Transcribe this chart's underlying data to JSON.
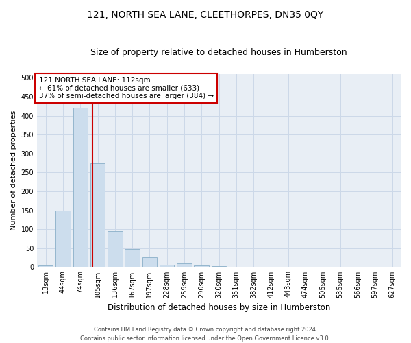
{
  "title": "121, NORTH SEA LANE, CLEETHORPES, DN35 0QY",
  "subtitle": "Size of property relative to detached houses in Humberston",
  "xlabel": "Distribution of detached houses by size in Humberston",
  "ylabel": "Number of detached properties",
  "bar_labels": [
    "13sqm",
    "44sqm",
    "74sqm",
    "105sqm",
    "136sqm",
    "167sqm",
    "197sqm",
    "228sqm",
    "259sqm",
    "290sqm",
    "320sqm",
    "351sqm",
    "382sqm",
    "412sqm",
    "443sqm",
    "474sqm",
    "505sqm",
    "535sqm",
    "566sqm",
    "597sqm",
    "627sqm"
  ],
  "bar_values": [
    5,
    150,
    420,
    275,
    95,
    48,
    27,
    7,
    10,
    5,
    3,
    0,
    0,
    0,
    0,
    0,
    0,
    0,
    0,
    0,
    0
  ],
  "bar_color": "#ccdded",
  "bar_edge_color": "#8aafc8",
  "vline_color": "#cc0000",
  "annotation_line1": "121 NORTH SEA LANE: 112sqm",
  "annotation_line2": "← 61% of detached houses are smaller (633)",
  "annotation_line3": "37% of semi-detached houses are larger (384) →",
  "annotation_box_edgecolor": "#cc0000",
  "annotation_box_facecolor": "#ffffff",
  "ylim": [
    0,
    510
  ],
  "yticks": [
    0,
    50,
    100,
    150,
    200,
    250,
    300,
    350,
    400,
    450,
    500
  ],
  "grid_color": "#ccd8e8",
  "bg_color": "#e8eef5",
  "footer": "Contains HM Land Registry data © Crown copyright and database right 2024.\nContains public sector information licensed under the Open Government Licence v3.0.",
  "title_fontsize": 10,
  "subtitle_fontsize": 9,
  "xlabel_fontsize": 8.5,
  "ylabel_fontsize": 8,
  "tick_fontsize": 7,
  "annotation_fontsize": 7.5,
  "footer_fontsize": 6
}
